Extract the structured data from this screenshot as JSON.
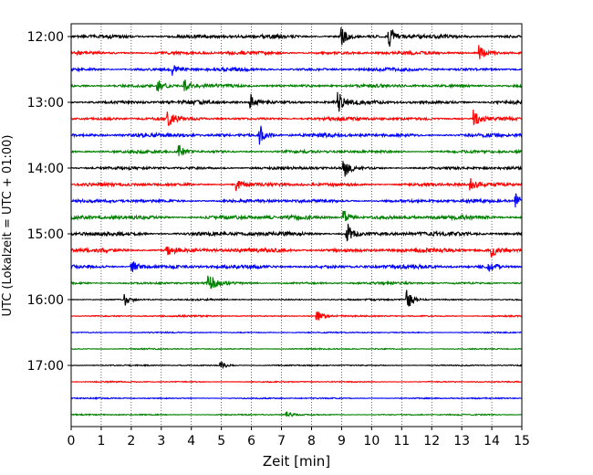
{
  "chart_data": {
    "type": "line",
    "title": "",
    "xlabel": "Zeit  [min]",
    "ylabel": "UTC (Lokalzeit = UTC + 01:00)",
    "xlim": [
      0,
      15
    ],
    "x_ticks": [
      0,
      1,
      2,
      3,
      4,
      5,
      6,
      7,
      8,
      9,
      10,
      11,
      12,
      13,
      14,
      15
    ],
    "x_tick_labels": [
      "0",
      "1",
      "2",
      "3",
      "4",
      "5",
      "6",
      "7",
      "8",
      "9",
      "10",
      "11",
      "12",
      "13",
      "14",
      "15"
    ],
    "y_tick_labels": [
      "12:00",
      "13:00",
      "14:00",
      "15:00",
      "16:00",
      "17:00"
    ],
    "y_tick_rows": [
      0,
      4,
      8,
      12,
      16,
      20
    ],
    "grid": "vertical-dotted",
    "trace_color_cycle": [
      "#000000",
      "#ff0000",
      "#0000ff",
      "#008000"
    ],
    "traces": [
      {
        "row": 0,
        "start": "12:00",
        "color": "black",
        "amplitude": 0.9,
        "events": [
          {
            "t": 9.0,
            "a": 1.3
          },
          {
            "t": 10.6,
            "a": 1.5
          }
        ]
      },
      {
        "row": 1,
        "start": "12:15",
        "color": "red",
        "amplitude": 0.8,
        "events": [
          {
            "t": 13.6,
            "a": 1.2
          }
        ]
      },
      {
        "row": 2,
        "start": "12:30",
        "color": "blue",
        "amplitude": 0.8,
        "events": [
          {
            "t": 3.4,
            "a": 0.8
          }
        ]
      },
      {
        "row": 3,
        "start": "12:45",
        "color": "green",
        "amplitude": 0.8,
        "events": [
          {
            "t": 2.9,
            "a": 1.0
          },
          {
            "t": 3.8,
            "a": 0.8
          }
        ]
      },
      {
        "row": 4,
        "start": "13:00",
        "color": "black",
        "amplitude": 0.9,
        "events": [
          {
            "t": 6.0,
            "a": 1.2
          },
          {
            "t": 8.9,
            "a": 1.6
          }
        ]
      },
      {
        "row": 5,
        "start": "13:15",
        "color": "red",
        "amplitude": 0.8,
        "events": [
          {
            "t": 3.2,
            "a": 1.3
          },
          {
            "t": 13.4,
            "a": 1.3
          }
        ]
      },
      {
        "row": 6,
        "start": "13:30",
        "color": "blue",
        "amplitude": 0.9,
        "events": [
          {
            "t": 6.3,
            "a": 1.5
          }
        ]
      },
      {
        "row": 7,
        "start": "13:45",
        "color": "green",
        "amplitude": 0.7,
        "events": [
          {
            "t": 3.6,
            "a": 1.0
          }
        ]
      },
      {
        "row": 8,
        "start": "14:00",
        "color": "black",
        "amplitude": 0.7,
        "events": [
          {
            "t": 9.1,
            "a": 1.3
          }
        ]
      },
      {
        "row": 9,
        "start": "14:15",
        "color": "red",
        "amplitude": 0.8,
        "events": [
          {
            "t": 5.5,
            "a": 1.0
          },
          {
            "t": 13.3,
            "a": 1.3
          }
        ]
      },
      {
        "row": 10,
        "start": "14:30",
        "color": "blue",
        "amplitude": 0.8,
        "events": [
          {
            "t": 14.8,
            "a": 1.2
          }
        ]
      },
      {
        "row": 11,
        "start": "14:45",
        "color": "green",
        "amplitude": 1.0,
        "events": [
          {
            "t": 9.1,
            "a": 1.2
          }
        ]
      },
      {
        "row": 12,
        "start": "15:00",
        "color": "black",
        "amplitude": 1.0,
        "events": [
          {
            "t": 9.2,
            "a": 1.6
          }
        ]
      },
      {
        "row": 13,
        "start": "15:15",
        "color": "red",
        "amplitude": 1.0,
        "events": [
          {
            "t": 3.2,
            "a": 1.2
          },
          {
            "t": 14.0,
            "a": 1.0
          }
        ]
      },
      {
        "row": 14,
        "start": "15:30",
        "color": "blue",
        "amplitude": 0.9,
        "events": [
          {
            "t": 2.0,
            "a": 1.3
          },
          {
            "t": 13.9,
            "a": 1.0
          }
        ]
      },
      {
        "row": 15,
        "start": "15:45",
        "color": "green",
        "amplitude": 0.6,
        "events": [
          {
            "t": 4.6,
            "a": 1.6
          }
        ]
      },
      {
        "row": 16,
        "start": "16:00",
        "color": "black",
        "amplitude": 0.4,
        "events": [
          {
            "t": 11.2,
            "a": 1.6
          },
          {
            "t": 1.8,
            "a": 0.9
          }
        ]
      },
      {
        "row": 17,
        "start": "16:15",
        "color": "red",
        "amplitude": 0.4,
        "events": [
          {
            "t": 8.2,
            "a": 0.9
          }
        ]
      },
      {
        "row": 18,
        "start": "16:30",
        "color": "blue",
        "amplitude": 0.3,
        "events": []
      },
      {
        "row": 19,
        "start": "16:45",
        "color": "green",
        "amplitude": 0.3,
        "events": []
      },
      {
        "row": 20,
        "start": "17:00",
        "color": "black",
        "amplitude": 0.3,
        "events": [
          {
            "t": 5.0,
            "a": 0.6
          }
        ]
      },
      {
        "row": 21,
        "start": "17:15",
        "color": "red",
        "amplitude": 0.3,
        "events": []
      },
      {
        "row": 22,
        "start": "17:30",
        "color": "blue",
        "amplitude": 0.3,
        "events": []
      },
      {
        "row": 23,
        "start": "17:45",
        "color": "green",
        "amplitude": 0.3,
        "events": [
          {
            "t": 7.2,
            "a": 0.5
          }
        ]
      }
    ]
  }
}
